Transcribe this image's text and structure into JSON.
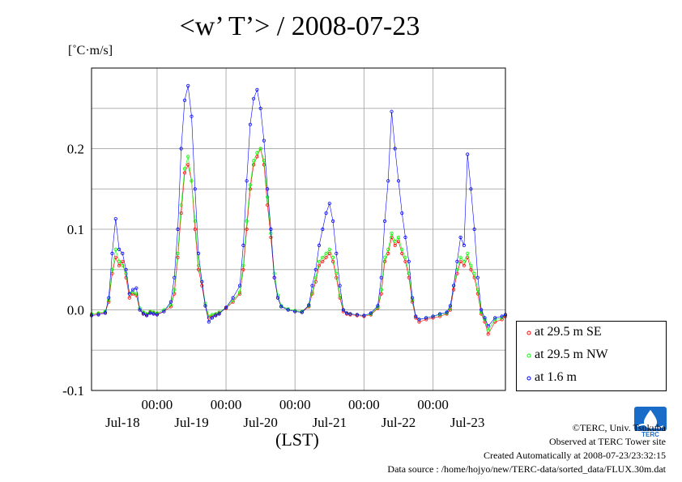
{
  "title": "<w’ T’> / 2008-07-23",
  "units_label": "[˚C·m/s]",
  "xlabel": "(LST)",
  "credits": {
    "copyright": "©TERC, Univ. Tsukuba",
    "observed": "Observed at TERC Tower site",
    "created": "Created Automatically at 2008-07-23/23:32:15",
    "source": "Data source : /home/hojyo/new/TERC-data/sorted_data/FLUX.30m.dat"
  },
  "logo_text": "TERC",
  "chart_data": {
    "type": "line",
    "title": "<w’ T’> / 2008-07-23",
    "xlabel": "(LST)",
    "ylabel": "[˚C·m/s]",
    "xlim_days": [
      -0.95,
      5.05
    ],
    "ylim": [
      -0.1,
      0.3
    ],
    "y_ticks": [
      -0.1,
      0.0,
      0.1,
      0.2
    ],
    "y_tick_labels": [
      "-0.1",
      "0.0",
      "0.1",
      "0.2"
    ],
    "x_time_labels": [
      "00:00",
      "00:00",
      "00:00",
      "00:00",
      "00:00"
    ],
    "x_date_labels": [
      "Jul-18",
      "Jul-19",
      "Jul-20",
      "Jul-21",
      "Jul-22",
      "Jul-23"
    ],
    "grid": true,
    "legend_position": "right",
    "series": [
      {
        "name": "at 29.5 m SE",
        "color": "#ff0000",
        "x": [
          -0.95,
          -0.85,
          -0.75,
          -0.7,
          -0.65,
          -0.6,
          -0.55,
          -0.5,
          -0.45,
          -0.4,
          -0.35,
          -0.3,
          -0.25,
          -0.2,
          -0.15,
          -0.1,
          -0.05,
          0.0,
          0.1,
          0.2,
          0.25,
          0.3,
          0.35,
          0.4,
          0.45,
          0.5,
          0.55,
          0.6,
          0.65,
          0.7,
          0.75,
          0.8,
          0.85,
          0.9,
          1.0,
          1.1,
          1.2,
          1.25,
          1.3,
          1.35,
          1.4,
          1.45,
          1.5,
          1.55,
          1.6,
          1.65,
          1.7,
          1.75,
          1.8,
          1.9,
          2.0,
          2.1,
          2.2,
          2.25,
          2.3,
          2.35,
          2.4,
          2.45,
          2.5,
          2.55,
          2.6,
          2.65,
          2.7,
          2.75,
          2.8,
          2.9,
          3.0,
          3.1,
          3.2,
          3.25,
          3.3,
          3.35,
          3.4,
          3.45,
          3.5,
          3.55,
          3.6,
          3.65,
          3.7,
          3.75,
          3.8,
          3.9,
          4.0,
          4.1,
          4.2,
          4.25,
          4.3,
          4.35,
          4.4,
          4.45,
          4.5,
          4.55,
          4.6,
          4.65,
          4.7,
          4.75,
          4.8,
          4.9,
          5.0,
          5.05
        ],
        "values": [
          -0.006,
          -0.005,
          -0.003,
          0.01,
          0.045,
          0.065,
          0.055,
          0.06,
          0.04,
          0.015,
          0.02,
          0.018,
          0.0,
          -0.004,
          -0.006,
          -0.003,
          -0.004,
          -0.005,
          -0.002,
          0.004,
          0.02,
          0.065,
          0.12,
          0.17,
          0.18,
          0.16,
          0.1,
          0.05,
          0.03,
          0.005,
          -0.01,
          -0.008,
          -0.006,
          -0.004,
          0.002,
          0.01,
          0.02,
          0.05,
          0.1,
          0.15,
          0.18,
          0.19,
          0.2,
          0.18,
          0.13,
          0.09,
          0.04,
          0.015,
          0.004,
          0.0,
          -0.002,
          -0.003,
          0.004,
          0.02,
          0.035,
          0.055,
          0.06,
          0.065,
          0.07,
          0.06,
          0.04,
          0.015,
          -0.002,
          -0.005,
          -0.006,
          -0.007,
          -0.008,
          -0.006,
          0.002,
          0.02,
          0.06,
          0.07,
          0.09,
          0.08,
          0.085,
          0.07,
          0.06,
          0.04,
          0.01,
          -0.01,
          -0.015,
          -0.012,
          -0.01,
          -0.008,
          -0.005,
          0.0,
          0.025,
          0.045,
          0.06,
          0.055,
          0.065,
          0.05,
          0.04,
          0.02,
          -0.005,
          -0.015,
          -0.03,
          -0.015,
          -0.012,
          -0.008
        ]
      },
      {
        "name": "at 29.5 m NW",
        "color": "#00ff00",
        "x": [
          -0.95,
          -0.85,
          -0.75,
          -0.7,
          -0.65,
          -0.6,
          -0.55,
          -0.5,
          -0.45,
          -0.4,
          -0.35,
          -0.3,
          -0.25,
          -0.2,
          -0.15,
          -0.1,
          -0.05,
          0.0,
          0.1,
          0.2,
          0.25,
          0.3,
          0.35,
          0.4,
          0.45,
          0.5,
          0.55,
          0.6,
          0.65,
          0.7,
          0.75,
          0.8,
          0.85,
          0.9,
          1.0,
          1.1,
          1.2,
          1.25,
          1.3,
          1.35,
          1.4,
          1.45,
          1.5,
          1.55,
          1.6,
          1.65,
          1.7,
          1.75,
          1.8,
          1.9,
          2.0,
          2.1,
          2.2,
          2.25,
          2.3,
          2.35,
          2.4,
          2.45,
          2.5,
          2.55,
          2.6,
          2.65,
          2.7,
          2.75,
          2.8,
          2.9,
          3.0,
          3.1,
          3.2,
          3.25,
          3.3,
          3.35,
          3.4,
          3.45,
          3.5,
          3.55,
          3.6,
          3.65,
          3.7,
          3.75,
          3.8,
          3.9,
          4.0,
          4.1,
          4.2,
          4.25,
          4.3,
          4.35,
          4.4,
          4.45,
          4.5,
          4.55,
          4.6,
          4.65,
          4.7,
          4.75,
          4.8,
          4.9,
          5.0,
          5.05
        ],
        "values": [
          -0.005,
          -0.004,
          -0.002,
          0.012,
          0.05,
          0.075,
          0.06,
          0.055,
          0.045,
          0.02,
          0.022,
          0.02,
          0.002,
          -0.003,
          -0.005,
          -0.002,
          -0.003,
          -0.004,
          0.0,
          0.006,
          0.025,
          0.07,
          0.13,
          0.175,
          0.19,
          0.16,
          0.11,
          0.055,
          0.035,
          0.008,
          -0.008,
          -0.006,
          -0.005,
          -0.003,
          0.003,
          0.012,
          0.022,
          0.055,
          0.11,
          0.155,
          0.185,
          0.195,
          0.2,
          0.185,
          0.14,
          0.095,
          0.045,
          0.018,
          0.005,
          0.001,
          -0.001,
          -0.002,
          0.005,
          0.022,
          0.04,
          0.06,
          0.065,
          0.07,
          0.075,
          0.065,
          0.045,
          0.018,
          0.0,
          -0.004,
          -0.005,
          -0.006,
          -0.007,
          -0.005,
          0.003,
          0.025,
          0.065,
          0.075,
          0.095,
          0.085,
          0.09,
          0.075,
          0.065,
          0.045,
          0.012,
          -0.008,
          -0.012,
          -0.01,
          -0.008,
          -0.006,
          -0.004,
          0.002,
          0.03,
          0.05,
          0.065,
          0.06,
          0.07,
          0.055,
          0.045,
          0.025,
          -0.003,
          -0.012,
          -0.025,
          -0.012,
          -0.01,
          -0.006
        ]
      },
      {
        "name": "at 1.6 m",
        "color": "#0000ff",
        "x": [
          -0.95,
          -0.85,
          -0.75,
          -0.7,
          -0.65,
          -0.6,
          -0.55,
          -0.5,
          -0.45,
          -0.4,
          -0.35,
          -0.3,
          -0.25,
          -0.2,
          -0.15,
          -0.1,
          -0.05,
          0.0,
          0.1,
          0.2,
          0.25,
          0.3,
          0.35,
          0.4,
          0.45,
          0.5,
          0.55,
          0.6,
          0.65,
          0.7,
          0.75,
          0.8,
          0.85,
          0.9,
          1.0,
          1.1,
          1.2,
          1.25,
          1.3,
          1.35,
          1.4,
          1.45,
          1.5,
          1.55,
          1.6,
          1.65,
          1.7,
          1.75,
          1.8,
          1.9,
          2.0,
          2.1,
          2.2,
          2.25,
          2.3,
          2.35,
          2.4,
          2.45,
          2.5,
          2.55,
          2.6,
          2.65,
          2.7,
          2.75,
          2.8,
          2.9,
          3.0,
          3.1,
          3.2,
          3.25,
          3.3,
          3.35,
          3.4,
          3.45,
          3.5,
          3.55,
          3.6,
          3.65,
          3.7,
          3.75,
          3.8,
          3.9,
          4.0,
          4.1,
          4.2,
          4.25,
          4.3,
          4.35,
          4.4,
          4.45,
          4.5,
          4.55,
          4.6,
          4.65,
          4.7,
          4.75,
          4.8,
          4.9,
          5.0,
          5.05
        ],
        "values": [
          -0.007,
          -0.006,
          -0.004,
          0.015,
          0.07,
          0.113,
          0.075,
          0.07,
          0.05,
          0.02,
          0.025,
          0.027,
          0.0,
          -0.005,
          -0.007,
          -0.004,
          -0.005,
          -0.006,
          -0.002,
          0.01,
          0.04,
          0.1,
          0.2,
          0.26,
          0.278,
          0.24,
          0.15,
          0.07,
          0.035,
          0.005,
          -0.015,
          -0.01,
          -0.007,
          -0.005,
          0.003,
          0.015,
          0.03,
          0.08,
          0.16,
          0.23,
          0.262,
          0.273,
          0.25,
          0.21,
          0.15,
          0.1,
          0.04,
          0.015,
          0.004,
          0.0,
          -0.002,
          -0.003,
          0.006,
          0.03,
          0.05,
          0.08,
          0.1,
          0.12,
          0.132,
          0.11,
          0.07,
          0.03,
          0.0,
          -0.004,
          -0.005,
          -0.006,
          -0.007,
          -0.004,
          0.005,
          0.04,
          0.11,
          0.16,
          0.246,
          0.2,
          0.16,
          0.12,
          0.09,
          0.06,
          0.015,
          -0.008,
          -0.012,
          -0.01,
          -0.008,
          -0.005,
          -0.003,
          0.005,
          0.03,
          0.06,
          0.09,
          0.08,
          0.193,
          0.15,
          0.1,
          0.04,
          0.0,
          -0.01,
          -0.02,
          -0.01,
          -0.008,
          -0.006
        ]
      }
    ]
  }
}
